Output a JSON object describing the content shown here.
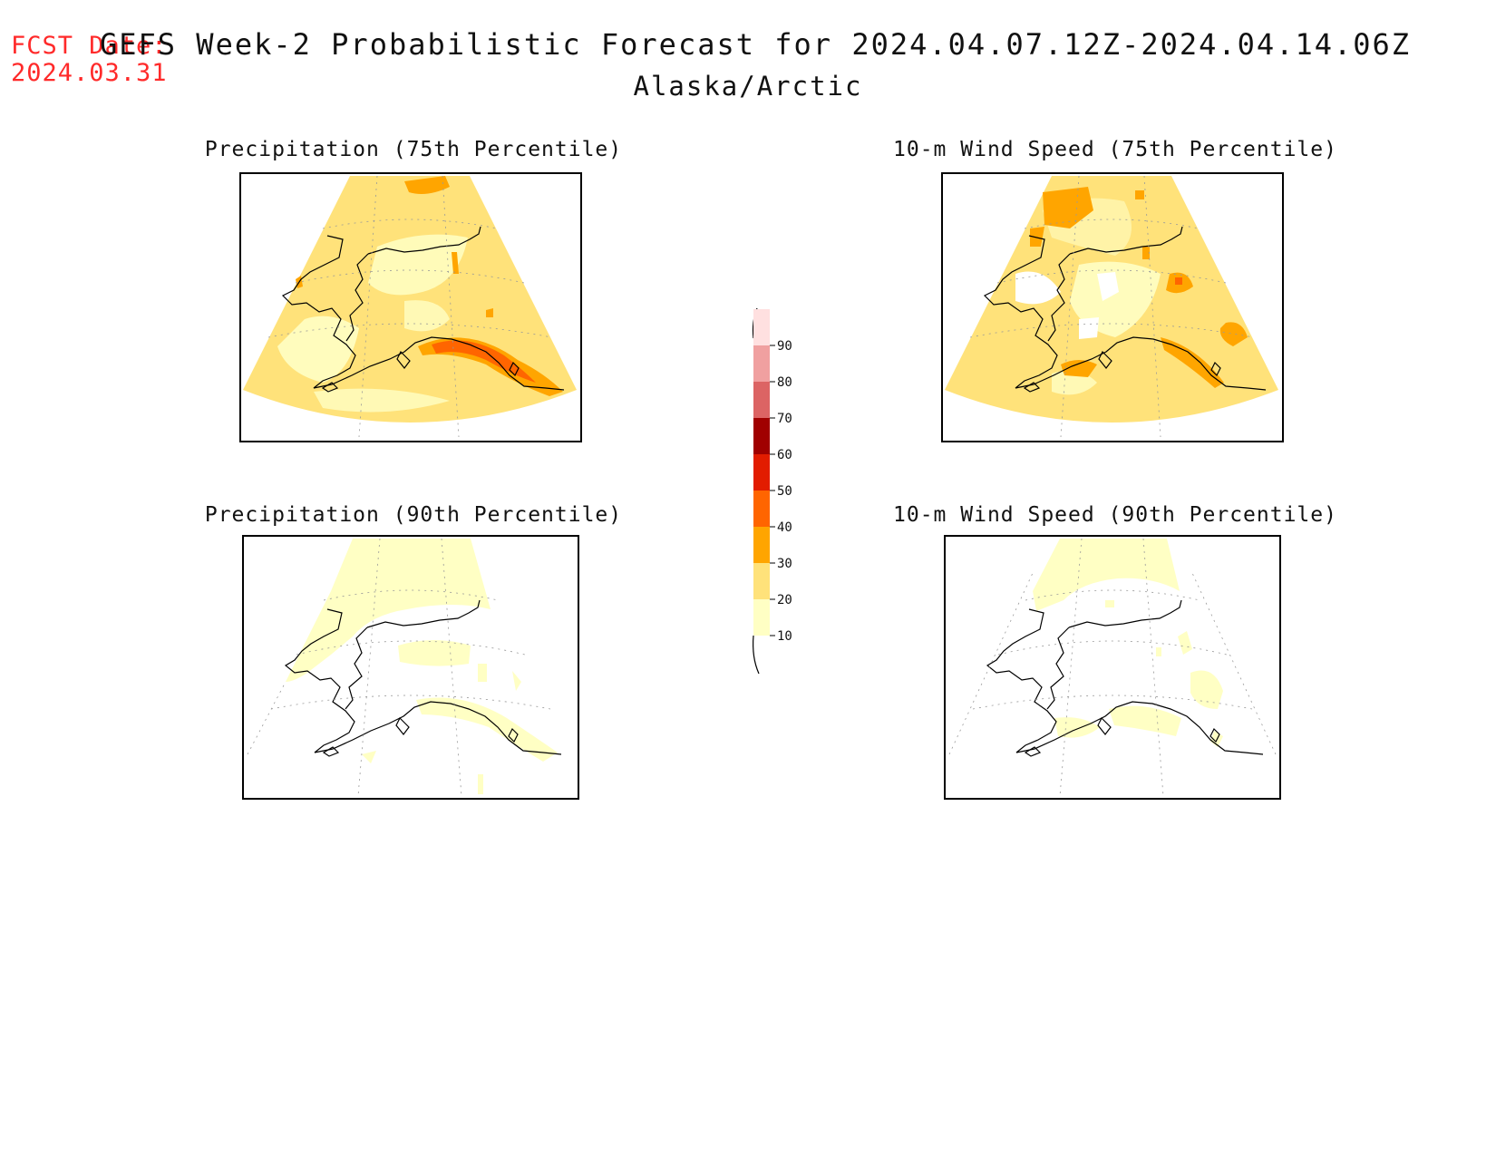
{
  "header": {
    "fcst_label": "FCST Date:",
    "fcst_date": "2024.03.31",
    "title": "GEFS Week-2 Probabilistic Forecast for 2024.04.07.12Z-2024.04.14.06Z",
    "subtitle": "Alaska/Arctic"
  },
  "panels": [
    {
      "title": "Precipitation (75th Percentile)",
      "level": "p75"
    },
    {
      "title": "10-m Wind Speed (75th Percentile)",
      "level": "w75"
    },
    {
      "title": "Precipitation (90th Percentile)",
      "level": "p90"
    },
    {
      "title": "10-m Wind Speed (90th Percentile)",
      "level": "w90"
    }
  ],
  "colorbar": {
    "levels": [
      "10",
      "20",
      "30",
      "40",
      "50",
      "60",
      "70",
      "80",
      "90"
    ],
    "colors": [
      "#ffffc4",
      "#ffe27a",
      "#ffa500",
      "#ff6500",
      "#e21c00",
      "#a00000",
      "#dc6464",
      "#f0a0a0",
      "#ffe0e0"
    ]
  }
}
